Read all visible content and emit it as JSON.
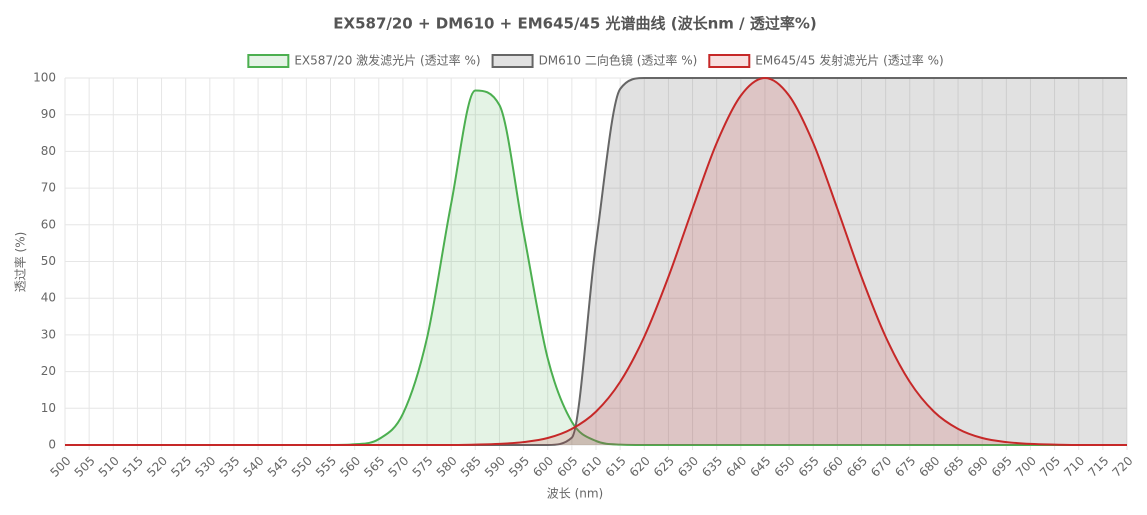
{
  "chart_data": {
    "type": "line",
    "title": "EX587/20 + DM610 + EM645/45 光谱曲线 (波长nm / 透过率%)",
    "x_label": "波长 (nm)",
    "y_label": "透过率 (%)",
    "x": [
      500,
      505,
      510,
      515,
      520,
      525,
      530,
      535,
      540,
      545,
      550,
      555,
      560,
      565,
      570,
      575,
      580,
      585,
      590,
      595,
      600,
      605,
      610,
      615,
      620,
      625,
      630,
      635,
      640,
      645,
      650,
      655,
      660,
      665,
      670,
      675,
      680,
      685,
      690,
      695,
      700,
      705,
      710,
      715,
      720
    ],
    "series": [
      {
        "name": "EX587/20 激发滤光片 (透过率 %)",
        "color": "#4caf50",
        "fill": "rgba(76,175,80,0.15)",
        "values": [
          0,
          0,
          0,
          0,
          0,
          0,
          0,
          0,
          0,
          0,
          0,
          0,
          0.2,
          1.6,
          8.5,
          29.2,
          65.8,
          96.6,
          92.6,
          57.9,
          23.6,
          6.3,
          1.1,
          0.1,
          0,
          0,
          0,
          0,
          0,
          0,
          0,
          0,
          0,
          0,
          0,
          0,
          0,
          0,
          0,
          0,
          0,
          0,
          0,
          0,
          0
        ]
      },
      {
        "name": "DM610 二向色镜 (透过率 %)",
        "color": "#666666",
        "fill": "rgba(120,120,120,0.22)",
        "values": [
          0,
          0,
          0,
          0,
          0,
          0,
          0,
          0,
          0,
          0,
          0,
          0,
          0,
          0,
          0,
          0,
          0,
          0,
          0,
          0,
          0,
          2,
          55,
          97,
          100,
          100,
          100,
          100,
          100,
          100,
          100,
          100,
          100,
          100,
          100,
          100,
          100,
          100,
          100,
          100,
          100,
          100,
          100,
          100,
          100
        ]
      },
      {
        "name": "EM645/45 发射滤光片 (透过率 %)",
        "color": "#c62828",
        "fill": "rgba(198,40,40,0.15)",
        "values": [
          0,
          0,
          0,
          0,
          0,
          0,
          0,
          0,
          0,
          0,
          0,
          0,
          0,
          0,
          0,
          0,
          0,
          0.1,
          0.3,
          0.8,
          1.9,
          4.4,
          9.1,
          17.2,
          29.5,
          45.8,
          64.4,
          82.3,
          95.2,
          100,
          95.2,
          82.3,
          64.4,
          45.8,
          29.5,
          17.2,
          9.1,
          4.4,
          1.9,
          0.8,
          0.3,
          0.1,
          0,
          0,
          0
        ]
      }
    ],
    "xlim": [
      500,
      720
    ],
    "xticks": [
      500,
      505,
      510,
      515,
      520,
      525,
      530,
      535,
      540,
      545,
      550,
      555,
      560,
      565,
      570,
      575,
      580,
      585,
      590,
      595,
      600,
      605,
      610,
      615,
      620,
      625,
      630,
      635,
      640,
      645,
      650,
      655,
      660,
      665,
      670,
      675,
      680,
      685,
      690,
      695,
      700,
      705,
      710,
      715,
      720
    ],
    "ylim": [
      0,
      100
    ],
    "yticks": [
      0,
      10,
      20,
      30,
      40,
      50,
      60,
      70,
      80,
      90,
      100
    ],
    "grid": true,
    "legend": "top"
  }
}
